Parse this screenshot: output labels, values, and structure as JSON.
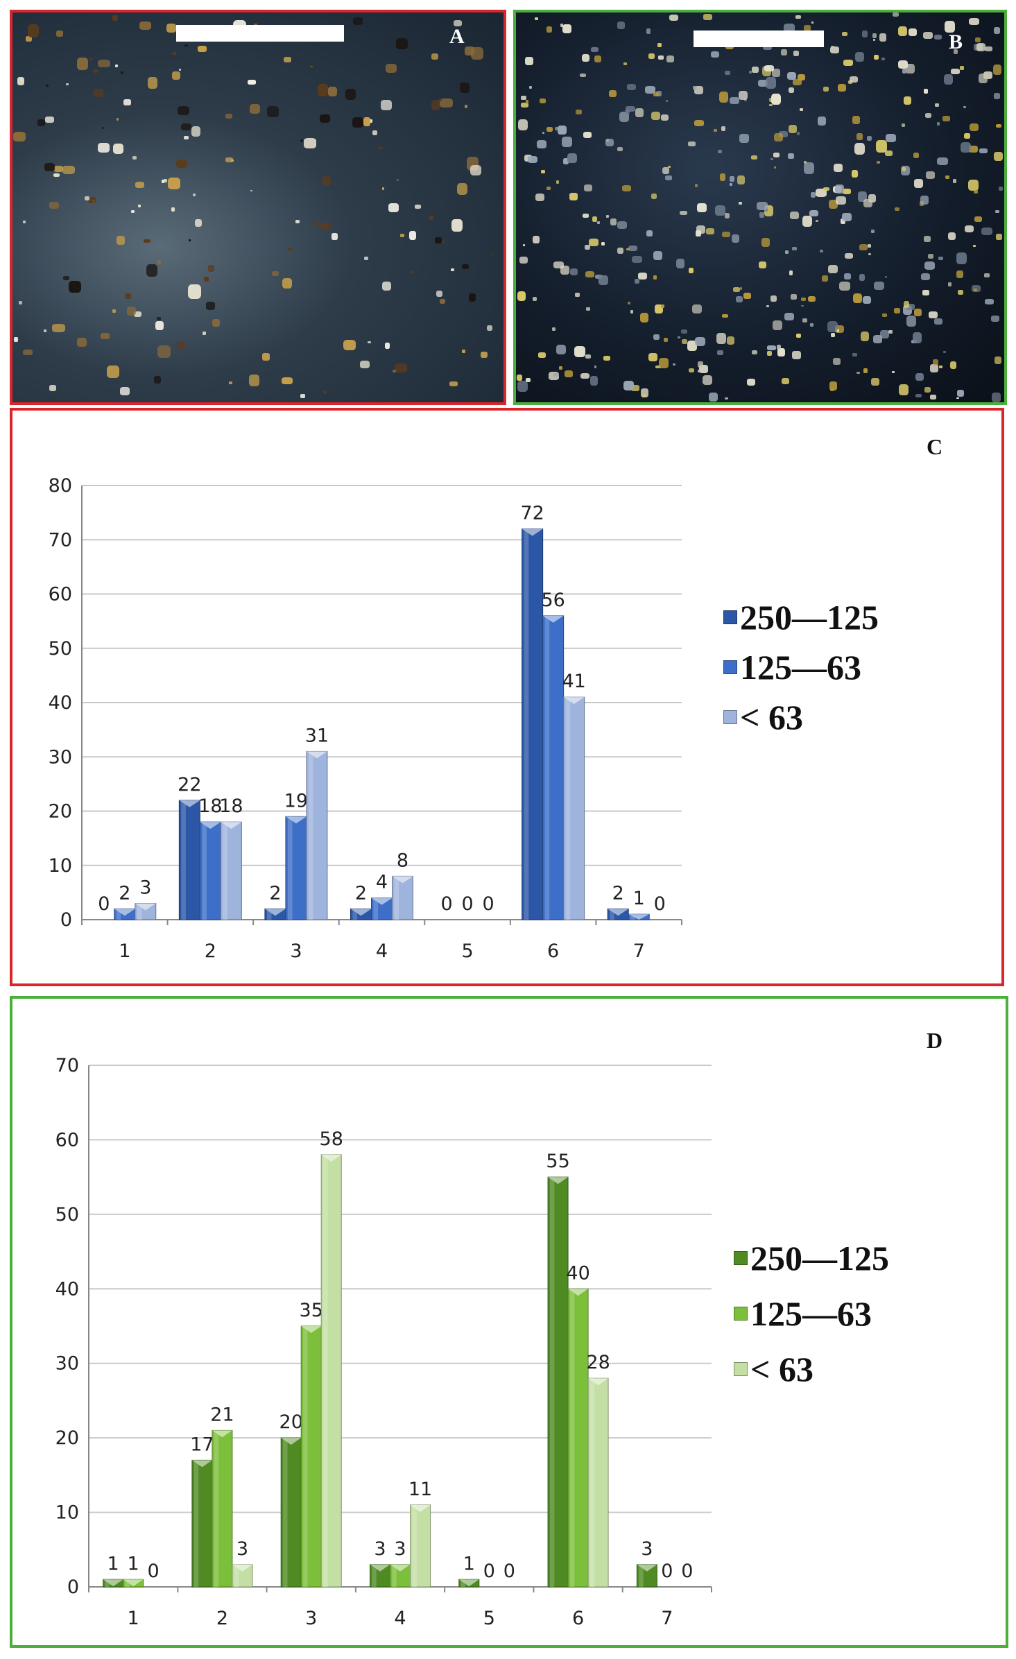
{
  "photos": {
    "a": {
      "letter": "A",
      "border": "#d9262b"
    },
    "b": {
      "letter": "B",
      "border": "#4caf3c"
    }
  },
  "chart_data": [
    {
      "panel_letter": "C",
      "type": "bar",
      "categories": [
        "1",
        "2",
        "3",
        "4",
        "5",
        "6",
        "7"
      ],
      "ylim": [
        0,
        80
      ],
      "yticks": [
        0,
        10,
        20,
        30,
        40,
        50,
        60,
        70,
        80
      ],
      "grid": true,
      "legend_position": "right",
      "series": [
        {
          "name": "250—125",
          "values": [
            0,
            22,
            2,
            2,
            0,
            72,
            2
          ],
          "color": "#2c56a6"
        },
        {
          "name": "125—63",
          "values": [
            2,
            18,
            19,
            4,
            0,
            56,
            1
          ],
          "color": "#3d6fc8"
        },
        {
          "name": "< 63",
          "values": [
            3,
            18,
            31,
            8,
            0,
            41,
            0
          ],
          "color": "#9fb4dd"
        }
      ]
    },
    {
      "panel_letter": "D",
      "type": "bar",
      "categories": [
        "1",
        "2",
        "3",
        "4",
        "5",
        "6",
        "7"
      ],
      "ylim": [
        0,
        70
      ],
      "yticks": [
        0,
        10,
        20,
        30,
        40,
        50,
        60,
        70
      ],
      "grid": true,
      "legend_position": "right",
      "series": [
        {
          "name": "250—125",
          "values": [
            1,
            17,
            20,
            3,
            1,
            55,
            3
          ],
          "color": "#4f8a23"
        },
        {
          "name": "125—63",
          "values": [
            1,
            21,
            35,
            3,
            0,
            40,
            0
          ],
          "color": "#7cbf3a"
        },
        {
          "name": "< 63",
          "values": [
            0,
            3,
            58,
            11,
            0,
            28,
            0
          ],
          "color": "#c4dfa4"
        }
      ]
    }
  ]
}
